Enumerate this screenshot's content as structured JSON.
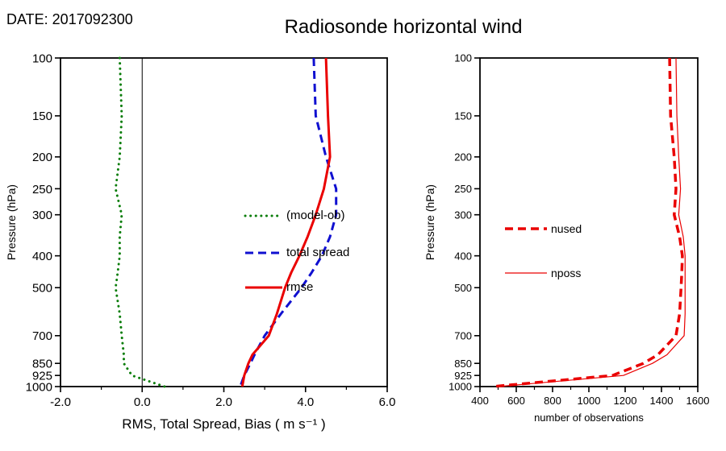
{
  "header": {
    "date": "DATE: 2017092300",
    "title": "Radiosonde horizontal wind"
  },
  "chart_data": [
    {
      "type": "line",
      "panel": "left",
      "xlabel": "RMS, Total Spread, Bias ( m s⁻¹ )",
      "ylabel": "Pressure (hPa)",
      "xlim": [
        -2,
        6
      ],
      "xticks": [
        -2,
        0,
        2,
        4,
        6
      ],
      "xtick_labels": [
        "-2.0",
        "0.0",
        "2.0",
        "4.0",
        "6.0"
      ],
      "yscale": "log",
      "ylim": [
        100,
        1000
      ],
      "yticks": [
        100,
        150,
        200,
        250,
        300,
        400,
        500,
        700,
        850,
        925,
        1000
      ],
      "ytick_labels": [
        "100",
        "150",
        "200",
        "250",
        "300",
        "400",
        "500",
        "700",
        "850",
        "925",
        "1000"
      ],
      "zero_line": true,
      "grid": false,
      "legend_position": "inside-right",
      "pressure_levels": [
        100,
        150,
        200,
        250,
        300,
        350,
        400,
        450,
        500,
        600,
        700,
        800,
        850,
        925,
        1000
      ],
      "series": [
        {
          "name": "(model-ob)",
          "color": "#0a7d0a",
          "style": "dotted",
          "width": 3,
          "values": [
            -0.55,
            -0.5,
            -0.55,
            -0.65,
            -0.5,
            -0.55,
            -0.55,
            -0.6,
            -0.65,
            -0.55,
            -0.5,
            -0.45,
            -0.45,
            -0.25,
            0.55
          ]
        },
        {
          "name": "total spread",
          "color": "#1010d0",
          "style": "dashed",
          "width": 3,
          "values": [
            4.2,
            4.25,
            4.5,
            4.75,
            4.75,
            4.6,
            4.4,
            4.15,
            3.9,
            3.4,
            3.0,
            2.75,
            2.65,
            2.5,
            2.4
          ]
        },
        {
          "name": "rmse",
          "color": "#ea0000",
          "style": "solid",
          "width": 3,
          "values": [
            4.5,
            4.55,
            4.6,
            4.45,
            4.25,
            4.05,
            3.85,
            3.65,
            3.5,
            3.3,
            3.1,
            2.7,
            2.6,
            2.5,
            2.45
          ]
        }
      ]
    },
    {
      "type": "line",
      "panel": "right",
      "xlabel": "number of observations",
      "ylabel": "Pressure (hPa)",
      "xlim": [
        400,
        1600
      ],
      "xticks": [
        400,
        600,
        800,
        1000,
        1200,
        1400,
        1600
      ],
      "xtick_labels": [
        "400",
        "600",
        "800",
        "1000",
        "1200",
        "1400",
        "1600"
      ],
      "yscale": "log",
      "ylim": [
        100,
        1000
      ],
      "yticks": [
        100,
        150,
        200,
        250,
        300,
        400,
        500,
        700,
        850,
        925,
        1000
      ],
      "ytick_labels": [
        "100",
        "150",
        "200",
        "250",
        "300",
        "400",
        "500",
        "700",
        "850",
        "925",
        "1000"
      ],
      "zero_line": false,
      "grid": false,
      "legend_position": "inside-left",
      "pressure_levels": [
        100,
        150,
        200,
        250,
        300,
        350,
        400,
        450,
        500,
        600,
        700,
        800,
        850,
        925,
        1000
      ],
      "series": [
        {
          "name": "nused",
          "color": "#ea0000",
          "style": "dashed",
          "width": 3.5,
          "values": [
            1445,
            1450,
            1470,
            1480,
            1470,
            1500,
            1515,
            1512,
            1508,
            1500,
            1480,
            1380,
            1300,
            1130,
            470
          ]
        },
        {
          "name": "nposs",
          "color": "#ea0000",
          "style": "solid",
          "width": 1.2,
          "values": [
            1480,
            1485,
            1495,
            1505,
            1495,
            1520,
            1530,
            1530,
            1530,
            1530,
            1525,
            1430,
            1350,
            1190,
            500
          ]
        }
      ]
    }
  ]
}
